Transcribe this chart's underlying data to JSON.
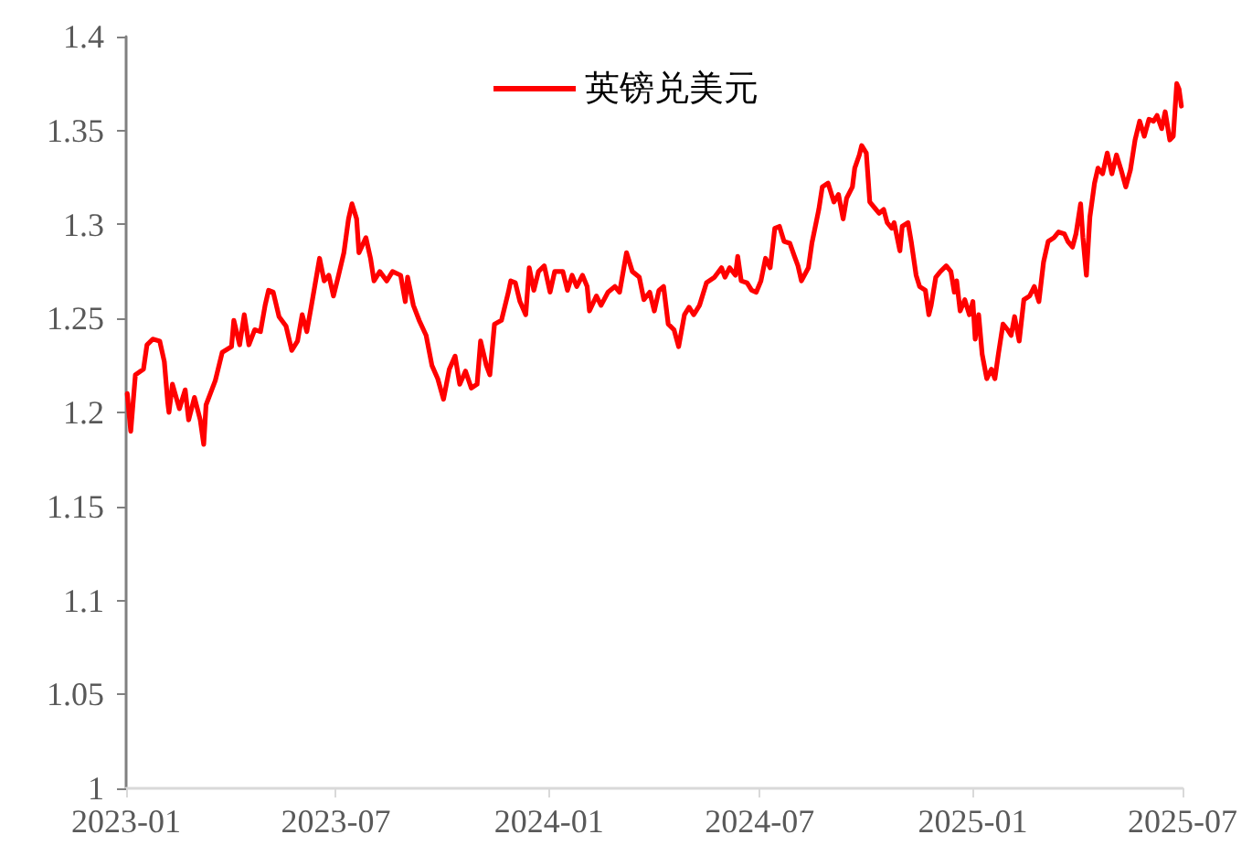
{
  "chart_data": {
    "type": "line",
    "x": [
      "2023-01-02",
      "2023-01-05",
      "2023-01-09",
      "2023-01-16",
      "2023-01-19",
      "2023-01-24",
      "2023-01-30",
      "2023-02-03",
      "2023-02-06",
      "2023-02-07",
      "2023-02-10",
      "2023-02-16",
      "2023-02-21",
      "2023-02-24",
      "2023-03-01",
      "2023-03-06",
      "2023-03-09",
      "2023-03-11",
      "2023-03-19",
      "2023-03-25",
      "2023-04-02",
      "2023-04-04",
      "2023-04-09",
      "2023-04-13",
      "2023-04-17",
      "2023-04-22",
      "2023-04-27",
      "2023-05-01",
      "2023-05-04",
      "2023-05-08",
      "2023-05-13",
      "2023-05-19",
      "2023-05-24",
      "2023-05-29",
      "2023-06-02",
      "2023-06-06",
      "2023-06-10",
      "2023-06-17",
      "2023-06-21",
      "2023-06-25",
      "2023-06-29",
      "2023-07-03",
      "2023-07-08",
      "2023-07-12",
      "2023-07-15",
      "2023-07-19",
      "2023-07-21",
      "2023-07-27",
      "2023-07-31",
      "2023-08-03",
      "2023-08-08",
      "2023-08-14",
      "2023-08-19",
      "2023-08-26",
      "2023-08-30",
      "2023-09-01",
      "2023-09-06",
      "2023-09-11",
      "2023-09-17",
      "2023-09-22",
      "2023-09-27",
      "2023-10-02",
      "2023-10-07",
      "2023-10-12",
      "2023-10-16",
      "2023-10-21",
      "2023-10-26",
      "2023-10-31",
      "2023-11-03",
      "2023-11-08",
      "2023-11-11",
      "2023-11-15",
      "2023-11-21",
      "2023-11-27",
      "2023-11-29",
      "2023-12-03",
      "2023-12-07",
      "2023-12-12",
      "2023-12-15",
      "2023-12-19",
      "2023-12-23",
      "2023-12-28",
      "2024-01-02",
      "2024-01-06",
      "2024-01-13",
      "2024-01-17",
      "2024-01-21",
      "2024-01-25",
      "2024-01-30",
      "2024-02-03",
      "2024-02-05",
      "2024-02-11",
      "2024-02-15",
      "2024-02-21",
      "2024-02-27",
      "2024-03-02",
      "2024-03-08",
      "2024-03-13",
      "2024-03-19",
      "2024-03-23",
      "2024-03-28",
      "2024-04-01",
      "2024-04-05",
      "2024-04-09",
      "2024-04-13",
      "2024-04-18",
      "2024-04-22",
      "2024-04-27",
      "2024-05-01",
      "2024-05-05",
      "2024-05-10",
      "2024-05-16",
      "2024-05-23",
      "2024-05-29",
      "2024-06-01",
      "2024-06-05",
      "2024-06-10",
      "2024-06-12",
      "2024-06-15",
      "2024-06-20",
      "2024-06-24",
      "2024-06-28",
      "2024-07-02",
      "2024-07-06",
      "2024-07-10",
      "2024-07-14",
      "2024-07-18",
      "2024-07-22",
      "2024-07-27",
      "2024-07-31",
      "2024-08-03",
      "2024-08-06",
      "2024-08-12",
      "2024-08-15",
      "2024-08-21",
      "2024-08-24",
      "2024-08-29",
      "2024-09-03",
      "2024-09-07",
      "2024-09-11",
      "2024-09-14",
      "2024-09-19",
      "2024-09-21",
      "2024-09-25",
      "2024-09-27",
      "2024-10-01",
      "2024-10-04",
      "2024-10-08",
      "2024-10-12",
      "2024-10-16",
      "2024-10-19",
      "2024-10-23",
      "2024-10-25",
      "2024-10-30",
      "2024-11-01",
      "2024-11-06",
      "2024-11-09",
      "2024-11-13",
      "2024-11-16",
      "2024-11-21",
      "2024-11-24",
      "2024-11-26",
      "2024-11-30",
      "2024-12-04",
      "2024-12-09",
      "2024-12-13",
      "2024-12-16",
      "2024-12-18",
      "2024-12-21",
      "2024-12-25",
      "2024-12-29",
      "2025-01-01",
      "2025-01-03",
      "2025-01-06",
      "2025-01-09",
      "2025-01-13",
      "2025-01-17",
      "2025-01-20",
      "2025-01-23",
      "2025-01-27",
      "2025-01-31",
      "2025-02-03",
      "2025-02-06",
      "2025-02-10",
      "2025-02-14",
      "2025-02-19",
      "2025-02-23",
      "2025-02-27",
      "2025-03-03",
      "2025-03-07",
      "2025-03-12",
      "2025-03-16",
      "2025-03-21",
      "2025-03-24",
      "2025-03-28",
      "2025-03-31",
      "2025-04-04",
      "2025-04-06",
      "2025-04-09",
      "2025-04-12",
      "2025-04-16",
      "2025-04-19",
      "2025-04-23",
      "2025-04-27",
      "2025-05-01",
      "2025-05-05",
      "2025-05-09",
      "2025-05-13",
      "2025-05-17",
      "2025-05-21",
      "2025-05-25",
      "2025-05-29",
      "2025-06-02",
      "2025-06-06",
      "2025-06-09",
      "2025-06-13",
      "2025-06-16",
      "2025-06-20",
      "2025-06-23",
      "2025-06-26",
      "2025-06-28",
      "2025-06-30"
    ],
    "series": [
      {
        "name": "英镑兑美元",
        "color": "#ff0000",
        "values": [
          1.21,
          1.19,
          1.22,
          1.223,
          1.236,
          1.239,
          1.238,
          1.227,
          1.205,
          1.2,
          1.215,
          1.202,
          1.212,
          1.196,
          1.208,
          1.196,
          1.183,
          1.204,
          1.217,
          1.232,
          1.235,
          1.249,
          1.236,
          1.252,
          1.236,
          1.244,
          1.243,
          1.257,
          1.265,
          1.264,
          1.251,
          1.246,
          1.233,
          1.238,
          1.252,
          1.243,
          1.257,
          1.282,
          1.27,
          1.273,
          1.262,
          1.272,
          1.285,
          1.303,
          1.311,
          1.303,
          1.285,
          1.293,
          1.282,
          1.27,
          1.275,
          1.27,
          1.275,
          1.273,
          1.259,
          1.272,
          1.257,
          1.249,
          1.241,
          1.225,
          1.218,
          1.207,
          1.223,
          1.23,
          1.215,
          1.222,
          1.213,
          1.215,
          1.238,
          1.225,
          1.22,
          1.247,
          1.249,
          1.264,
          1.27,
          1.269,
          1.259,
          1.252,
          1.277,
          1.265,
          1.275,
          1.278,
          1.264,
          1.275,
          1.275,
          1.265,
          1.273,
          1.267,
          1.273,
          1.267,
          1.254,
          1.262,
          1.257,
          1.264,
          1.267,
          1.264,
          1.285,
          1.275,
          1.272,
          1.26,
          1.264,
          1.254,
          1.265,
          1.267,
          1.247,
          1.244,
          1.235,
          1.252,
          1.256,
          1.252,
          1.257,
          1.269,
          1.272,
          1.277,
          1.272,
          1.277,
          1.273,
          1.283,
          1.27,
          1.269,
          1.265,
          1.264,
          1.27,
          1.282,
          1.277,
          1.298,
          1.299,
          1.291,
          1.29,
          1.283,
          1.278,
          1.27,
          1.277,
          1.29,
          1.308,
          1.32,
          1.322,
          1.312,
          1.316,
          1.303,
          1.314,
          1.32,
          1.33,
          1.337,
          1.342,
          1.338,
          1.312,
          1.309,
          1.306,
          1.308,
          1.301,
          1.298,
          1.301,
          1.286,
          1.299,
          1.301,
          1.29,
          1.273,
          1.267,
          1.265,
          1.252,
          1.257,
          1.272,
          1.275,
          1.278,
          1.275,
          1.264,
          1.27,
          1.254,
          1.26,
          1.252,
          1.259,
          1.239,
          1.252,
          1.231,
          1.218,
          1.223,
          1.218,
          1.231,
          1.247,
          1.244,
          1.241,
          1.251,
          1.238,
          1.26,
          1.262,
          1.267,
          1.259,
          1.28,
          1.291,
          1.293,
          1.296,
          1.295,
          1.291,
          1.288,
          1.295,
          1.311,
          1.293,
          1.273,
          1.304,
          1.322,
          1.33,
          1.327,
          1.338,
          1.327,
          1.337,
          1.329,
          1.32,
          1.329,
          1.345,
          1.355,
          1.347,
          1.356,
          1.355,
          1.358,
          1.351,
          1.36,
          1.345,
          1.347,
          1.375,
          1.372,
          1.363
        ]
      }
    ],
    "xlim": [
      "2023-01-01",
      "2025-07-01"
    ],
    "xticks": [
      "2023-01",
      "2023-07",
      "2024-01",
      "2024-07",
      "2025-01",
      "2025-07"
    ],
    "ylim": [
      1,
      1.4
    ],
    "yticks": [
      1,
      1.05,
      1.1,
      1.15,
      1.2,
      1.25,
      1.3,
      1.35,
      1.4
    ],
    "grid": false,
    "legend": "top",
    "marker": "none",
    "line_style": "solid"
  }
}
